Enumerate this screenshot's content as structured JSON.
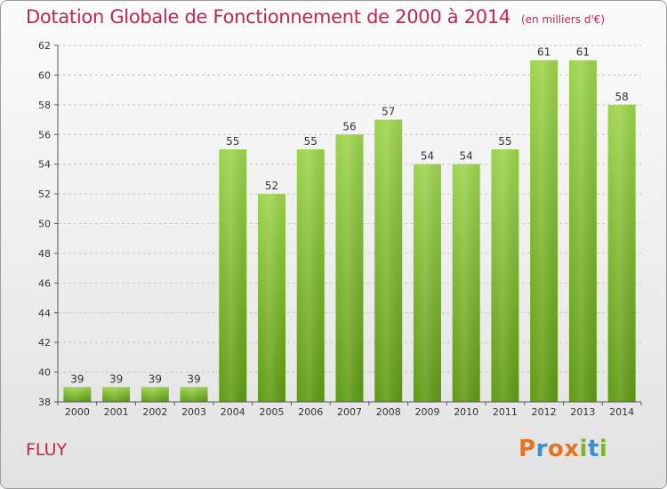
{
  "header": {
    "title": "Dotation Globale de Fonctionnement de 2000 à 2014",
    "unit_note": "(en milliers d'€)"
  },
  "footer": {
    "commune": "FLUY",
    "brand_letters": [
      "P",
      "r",
      "o",
      "x",
      "i",
      "t",
      "i"
    ],
    "brand_colors": [
      "#e8731c",
      "#3a8fd1",
      "#e8731c",
      "#e8731c",
      "#7ab52b",
      "#3a8fd1",
      "#7ab52b"
    ]
  },
  "colors": {
    "accent": "#c0264e",
    "bar_light": "#9ed44e",
    "bar_dark": "#5f9a14",
    "grid": "#c6c6c6"
  },
  "chart_data": {
    "type": "bar",
    "title": "Dotation Globale de Fonctionnement de 2000 à 2014",
    "ylabel": "en milliers d'€",
    "xlabel": "",
    "categories": [
      "2000",
      "2001",
      "2002",
      "2003",
      "2004",
      "2005",
      "2006",
      "2007",
      "2008",
      "2009",
      "2010",
      "2011",
      "2012",
      "2013",
      "2014"
    ],
    "values": [
      39,
      39,
      39,
      39,
      55,
      52,
      55,
      56,
      57,
      54,
      54,
      55,
      61,
      61,
      58
    ],
    "ylim": [
      38,
      62
    ],
    "yticks": [
      38,
      40,
      42,
      44,
      46,
      48,
      50,
      52,
      54,
      56,
      58,
      60,
      62
    ],
    "grid": true
  }
}
